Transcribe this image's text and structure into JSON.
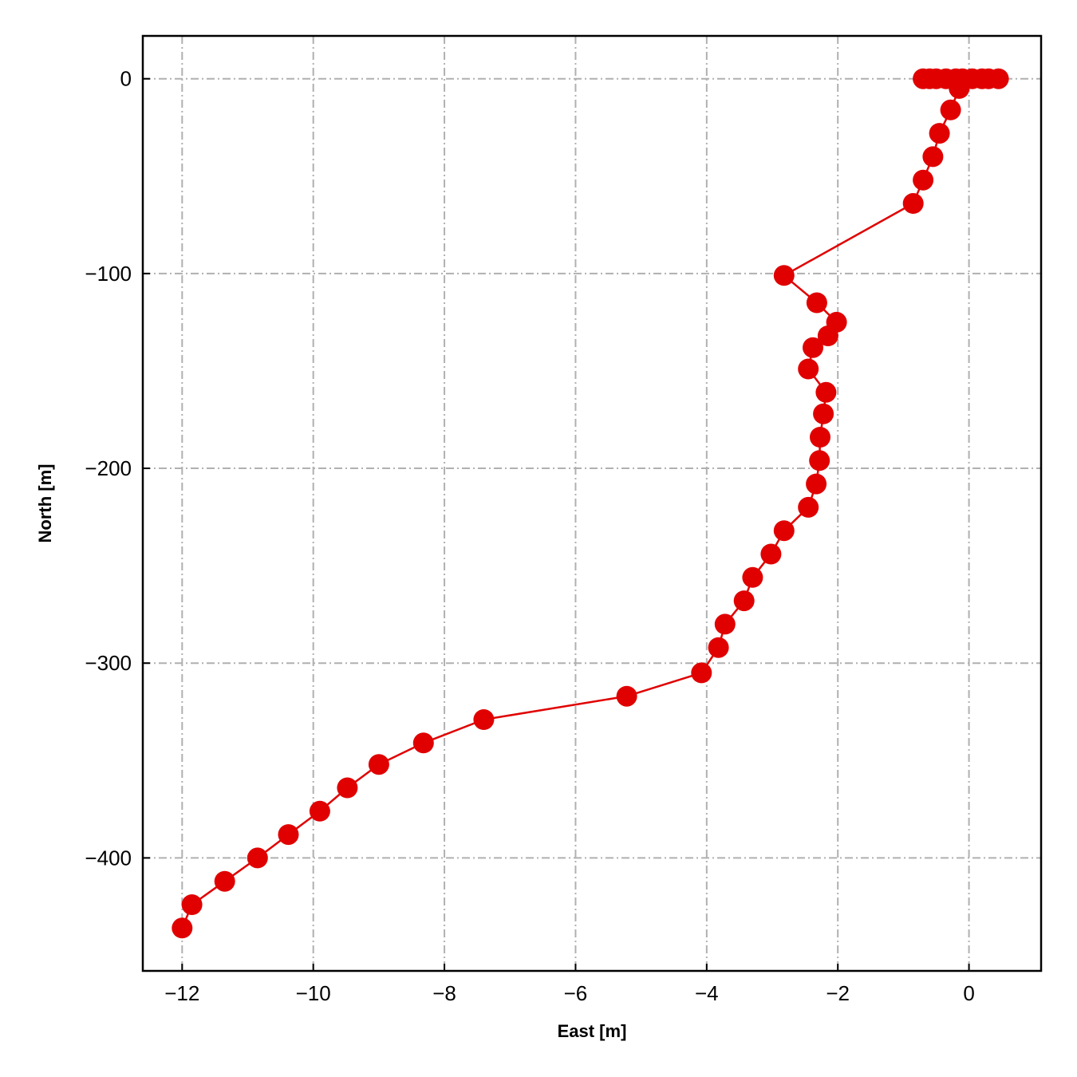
{
  "chart_data": {
    "type": "line",
    "title": "",
    "xlabel": "East [m]",
    "ylabel": "North [m]",
    "xlim": [
      -12.6,
      1.1
    ],
    "ylim": [
      -458,
      22
    ],
    "xticks": [
      -12,
      -10,
      -8,
      -6,
      -4,
      -2,
      0
    ],
    "yticks": [
      0,
      -100,
      -200,
      -300,
      -400
    ],
    "grid": true,
    "series": [
      {
        "color": "#e00000",
        "marker": "circle",
        "points": [
          [
            0.45,
            0
          ],
          [
            0.3,
            0
          ],
          [
            0.2,
            0
          ],
          [
            0.05,
            0
          ],
          [
            -0.1,
            0
          ],
          [
            -0.2,
            0
          ],
          [
            -0.35,
            0
          ],
          [
            -0.5,
            0
          ],
          [
            -0.6,
            0
          ],
          [
            -0.7,
            0
          ],
          [
            -0.15,
            -5
          ],
          [
            -0.28,
            -16
          ],
          [
            -0.45,
            -28
          ],
          [
            -0.55,
            -40
          ],
          [
            -0.7,
            -52
          ],
          [
            -0.85,
            -64
          ],
          [
            -2.82,
            -101
          ],
          [
            -2.32,
            -115
          ],
          [
            -2.02,
            -125
          ],
          [
            -2.15,
            -132
          ],
          [
            -2.38,
            -138
          ],
          [
            -2.45,
            -149
          ],
          [
            -2.18,
            -161
          ],
          [
            -2.22,
            -172
          ],
          [
            -2.27,
            -184
          ],
          [
            -2.28,
            -196
          ],
          [
            -2.33,
            -208
          ],
          [
            -2.45,
            -220
          ],
          [
            -2.82,
            -232
          ],
          [
            -3.02,
            -244
          ],
          [
            -3.3,
            -256
          ],
          [
            -3.43,
            -268
          ],
          [
            -3.72,
            -280
          ],
          [
            -3.82,
            -292
          ],
          [
            -4.08,
            -305
          ],
          [
            -5.22,
            -317
          ],
          [
            -7.4,
            -329
          ],
          [
            -8.32,
            -341
          ],
          [
            -9.0,
            -352
          ],
          [
            -9.48,
            -364
          ],
          [
            -9.9,
            -376
          ],
          [
            -10.38,
            -388
          ],
          [
            -10.85,
            -400
          ],
          [
            -11.35,
            -412
          ],
          [
            -11.85,
            -424
          ],
          [
            -12.0,
            -436
          ]
        ]
      }
    ]
  }
}
